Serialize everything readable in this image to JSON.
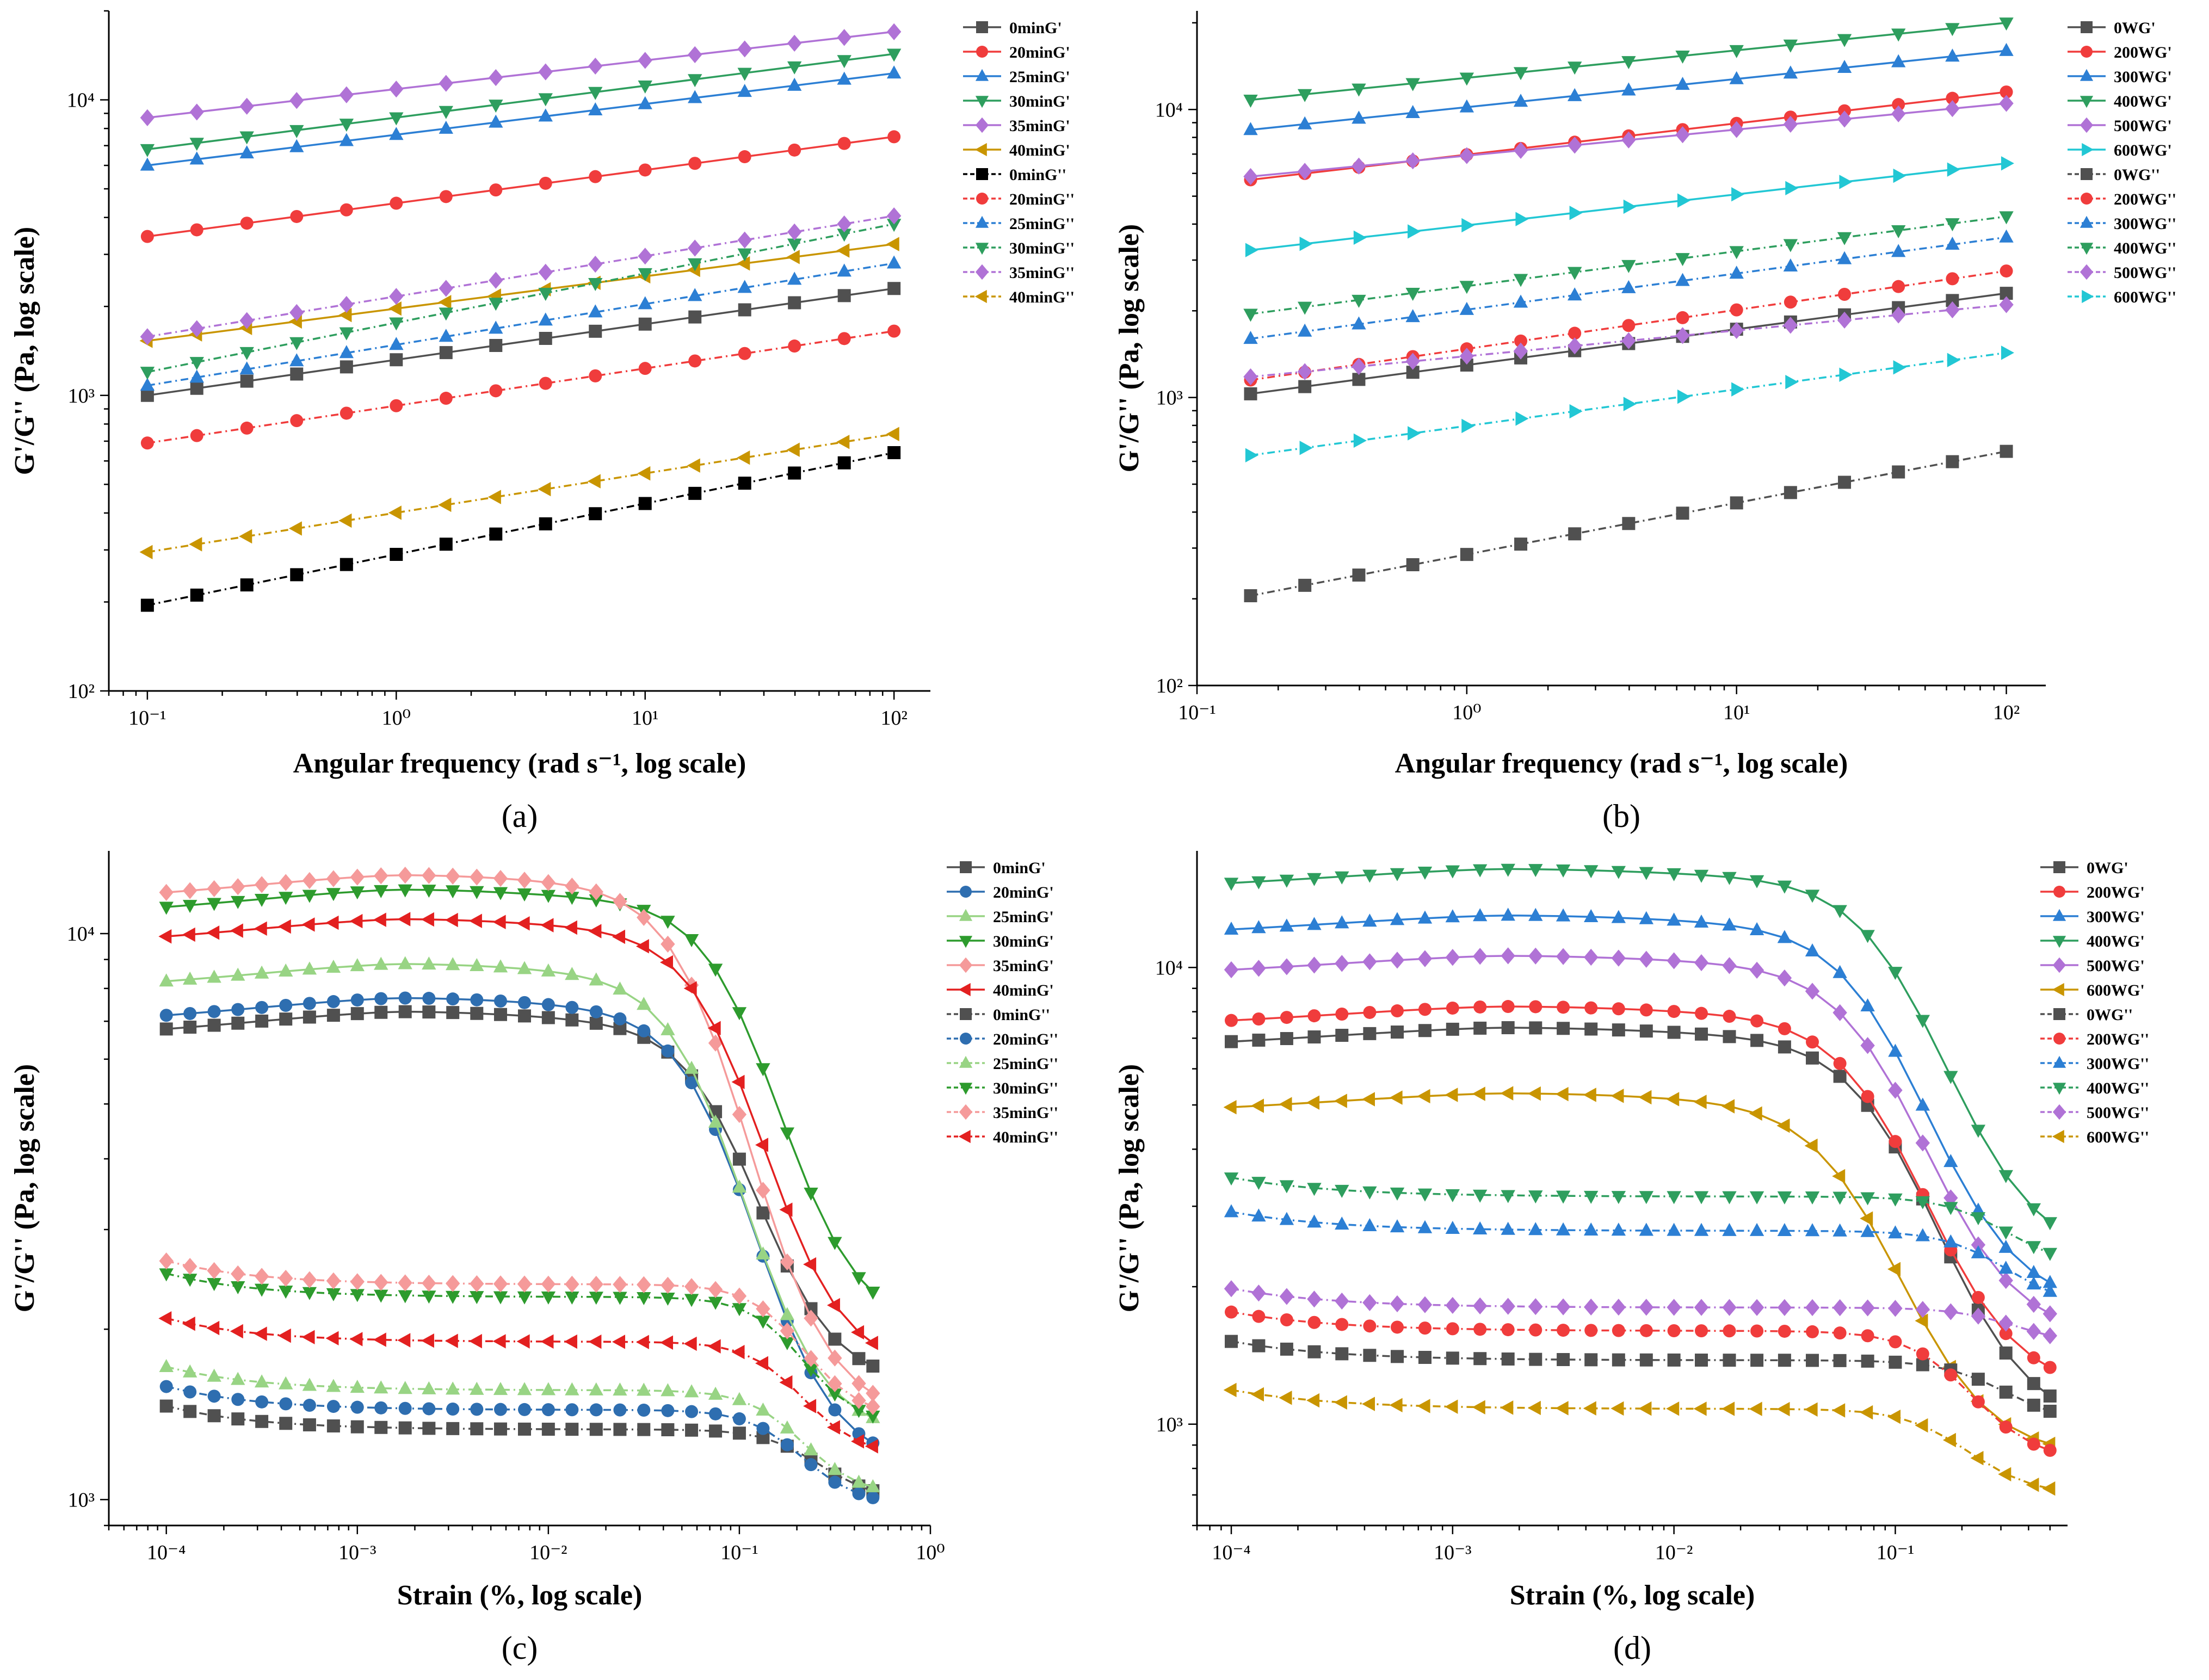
{
  "figure": {
    "colors": {
      "black": "#505050",
      "black_fill": "#000000",
      "red": "#f03c3c",
      "blue": "#2c7fd4",
      "green": "#2e9e5e",
      "purple": "#b072d6",
      "orange": "#c99500",
      "cyan": "#22c7d4",
      "steel": "#2e6eb0",
      "light_green": "#98d484",
      "dark_green": "#2d9b2d",
      "pink": "#f59a9a",
      "bright_red": "#e32020"
    }
  },
  "chart_data": [
    {
      "id": "a",
      "panel_label": "(a)",
      "type": "line",
      "xscale": "log",
      "yscale": "log",
      "xlabel": "Angular frequency (rad s⁻¹, log scale)",
      "ylabel": "G'/G'' (Pa, log scale)",
      "xlim": [
        0.07,
        140
      ],
      "ylim": [
        100,
        20000
      ],
      "xticks": [
        0.1,
        1,
        10,
        100
      ],
      "xtick_labels": [
        "10⁻¹",
        "10⁰",
        "10¹",
        "10²"
      ],
      "yticks": [
        100,
        1000,
        10000
      ],
      "ytick_labels": [
        "10²",
        "10³",
        "10⁴"
      ],
      "legend_position": "top-right",
      "x": [
        0.1,
        0.158,
        0.251,
        0.398,
        0.631,
        1,
        1.585,
        2.512,
        3.981,
        6.31,
        10,
        15.85,
        25.12,
        39.81,
        63.1,
        100
      ],
      "series": [
        {
          "name": "0minG'",
          "color": "#505050",
          "marker": "square",
          "dash": "solid",
          "y0": 1000,
          "y1": 2300
        },
        {
          "name": "20minG'",
          "color": "#f03c3c",
          "marker": "circle",
          "dash": "solid",
          "y0": 3450,
          "y1": 7500
        },
        {
          "name": "25minG'",
          "color": "#2c7fd4",
          "marker": "triangle-up",
          "dash": "solid",
          "y0": 6000,
          "y1": 12300
        },
        {
          "name": "30minG'",
          "color": "#2e9e5e",
          "marker": "triangle-down",
          "dash": "solid",
          "y0": 6800,
          "y1": 14300
        },
        {
          "name": "35minG'",
          "color": "#b072d6",
          "marker": "diamond",
          "dash": "solid",
          "y0": 8700,
          "y1": 17000
        },
        {
          "name": "40minG'",
          "color": "#c99500",
          "marker": "triangle-left",
          "dash": "solid",
          "y0": 1530,
          "y1": 3250
        },
        {
          "name": "0minG''",
          "color": "#000000",
          "marker": "square",
          "dash": "dashdot",
          "y0": 195,
          "y1": 640
        },
        {
          "name": "20minG''",
          "color": "#f03c3c",
          "marker": "circle",
          "dash": "dashdot",
          "y0": 690,
          "y1": 1650
        },
        {
          "name": "25minG''",
          "color": "#2c7fd4",
          "marker": "triangle-up",
          "dash": "dashdot",
          "y0": 1080,
          "y1": 2800
        },
        {
          "name": "30minG''",
          "color": "#2e9e5e",
          "marker": "triangle-down",
          "dash": "dashdot",
          "y0": 1200,
          "y1": 3800
        },
        {
          "name": "35minG''",
          "color": "#b072d6",
          "marker": "diamond",
          "dash": "dashdot",
          "y0": 1580,
          "y1": 4050
        },
        {
          "name": "40minG''",
          "color": "#c99500",
          "marker": "triangle-left",
          "dash": "dashdot",
          "y0": 295,
          "y1": 740
        }
      ]
    },
    {
      "id": "b",
      "panel_label": "(b)",
      "type": "line",
      "xscale": "log",
      "yscale": "log",
      "xlabel": "Angular frequency (rad s⁻¹, log scale)",
      "ylabel": "G'/G'' (Pa, log scale)",
      "xlim": [
        0.1,
        140
      ],
      "ylim": [
        100,
        22000
      ],
      "xticks": [
        0.1,
        1,
        10,
        100
      ],
      "xtick_labels": [
        "10⁻¹",
        "10⁰",
        "10¹",
        "10²"
      ],
      "yticks": [
        100,
        1000,
        10000
      ],
      "ytick_labels": [
        "10²",
        "10³",
        "10⁴"
      ],
      "legend_position": "top-right",
      "x": [
        0.158,
        0.251,
        0.398,
        0.631,
        1,
        1.585,
        2.512,
        3.981,
        6.31,
        10,
        15.85,
        25.12,
        39.81,
        63.1,
        100
      ],
      "series": [
        {
          "name": "0WG'",
          "color": "#505050",
          "marker": "square",
          "dash": "solid",
          "y0": 1030,
          "y1": 2300
        },
        {
          "name": "200WG'",
          "color": "#f03c3c",
          "marker": "circle",
          "dash": "solid",
          "y0": 5700,
          "y1": 11500
        },
        {
          "name": "300WG'",
          "color": "#2c7fd4",
          "marker": "triangle-up",
          "dash": "solid",
          "y0": 8500,
          "y1": 16000
        },
        {
          "name": "400WG'",
          "color": "#2e9e5e",
          "marker": "triangle-down",
          "dash": "solid",
          "y0": 10800,
          "y1": 20000
        },
        {
          "name": "500WG'",
          "color": "#b072d6",
          "marker": "diamond",
          "dash": "solid",
          "y0": 5850,
          "y1": 10500
        },
        {
          "name": "600WG'",
          "color": "#22c7d4",
          "marker": "triangle-right",
          "dash": "solid",
          "y0": 3250,
          "y1": 6500
        },
        {
          "name": "0WG''",
          "color": "#505050",
          "marker": "square",
          "dash": "dashdot",
          "y0": 205,
          "y1": 650
        },
        {
          "name": "200WG''",
          "color": "#f03c3c",
          "marker": "circle",
          "dash": "dashdot",
          "y0": 1150,
          "y1": 2750
        },
        {
          "name": "300WG''",
          "color": "#2c7fd4",
          "marker": "triangle-up",
          "dash": "dashdot",
          "y0": 1600,
          "y1": 3600
        },
        {
          "name": "400WG''",
          "color": "#2e9e5e",
          "marker": "triangle-down",
          "dash": "dashdot",
          "y0": 1950,
          "y1": 4250
        },
        {
          "name": "500WG''",
          "color": "#b072d6",
          "marker": "diamond",
          "dash": "dashdot",
          "y0": 1180,
          "y1": 2100
        },
        {
          "name": "600WG''",
          "color": "#22c7d4",
          "marker": "triangle-right",
          "dash": "dashdot",
          "y0": 630,
          "y1": 1430
        }
      ]
    },
    {
      "id": "c",
      "panel_label": "(c)",
      "type": "line",
      "xscale": "log",
      "yscale": "log",
      "xlabel": "Strain (%, log scale)",
      "ylabel": "G'/G'' (Pa, log scale)",
      "xlim": [
        5e-05,
        1
      ],
      "ylim": [
        900,
        14000
      ],
      "xticks": [
        0.0001,
        0.001,
        0.01,
        0.1,
        1
      ],
      "xtick_labels": [
        "10⁻⁴",
        "10⁻³",
        "10⁻²",
        "10⁻¹",
        "10⁰"
      ],
      "yticks": [
        1000,
        10000
      ],
      "ytick_labels": [
        "10³",
        "10⁴"
      ],
      "legend_position": "top-right",
      "x": [
        0.0001,
        0.000133,
        0.000178,
        0.000237,
        0.000316,
        0.000422,
        0.000562,
        0.00075,
        0.001,
        0.00133,
        0.00178,
        0.00237,
        0.00316,
        0.00422,
        0.00562,
        0.0075,
        0.01,
        0.0133,
        0.0178,
        0.0237,
        0.0316,
        0.0422,
        0.0562,
        0.075,
        0.1,
        0.133,
        0.178,
        0.237,
        0.316,
        0.422,
        0.5
      ],
      "series": [
        {
          "name": "0minG'",
          "color": "#505050",
          "marker": "square",
          "dash": "solid",
          "plateau": 7000,
          "end": 1600,
          "kind": "storage",
          "gc": 0.09
        },
        {
          "name": "20minG'",
          "color": "#2e6eb0",
          "marker": "circle",
          "dash": "solid",
          "plateau": 7400,
          "end": 1150,
          "kind": "storage",
          "gc": 0.08
        },
        {
          "name": "25minG'",
          "color": "#98d484",
          "marker": "triangle-up",
          "dash": "solid",
          "plateau": 8500,
          "end": 1300,
          "kind": "storage",
          "gc": 0.07
        },
        {
          "name": "30minG'",
          "color": "#2d9b2d",
          "marker": "triangle-down",
          "dash": "solid",
          "plateau": 11500,
          "end": 2000,
          "kind": "storage",
          "gc": 0.11
        },
        {
          "name": "35minG'",
          "color": "#f59a9a",
          "marker": "diamond",
          "dash": "solid",
          "plateau": 12200,
          "end": 1400,
          "kind": "storage",
          "gc": 0.07
        },
        {
          "name": "40minG'",
          "color": "#e32020",
          "marker": "triangle-left",
          "dash": "solid",
          "plateau": 10200,
          "end": 1700,
          "kind": "storage",
          "gc": 0.09
        },
        {
          "name": "0minG''",
          "color": "#505050",
          "marker": "square",
          "dash": "dashdot",
          "plateau": 1330,
          "end": 1000,
          "kind": "loss",
          "gc": 0.25
        },
        {
          "name": "20minG''",
          "color": "#2e6eb0",
          "marker": "circle",
          "dash": "dashdot",
          "plateau": 1440,
          "end": 980,
          "kind": "loss",
          "gc": 0.2
        },
        {
          "name": "25minG''",
          "color": "#98d484",
          "marker": "triangle-up",
          "dash": "dashdot",
          "plateau": 1560,
          "end": 1020,
          "kind": "loss",
          "gc": 0.2
        },
        {
          "name": "30minG''",
          "color": "#2d9b2d",
          "marker": "triangle-down",
          "dash": "dashdot",
          "plateau": 2280,
          "end": 1350,
          "kind": "loss",
          "gc": 0.2
        },
        {
          "name": "35minG''",
          "color": "#f59a9a",
          "marker": "diamond",
          "dash": "dashdot",
          "plateau": 2400,
          "end": 1400,
          "kind": "loss",
          "gc": 0.2
        },
        {
          "name": "40minG''",
          "color": "#e32020",
          "marker": "triangle-left",
          "dash": "dashdot",
          "plateau": 1900,
          "end": 1200,
          "kind": "loss",
          "gc": 0.2
        }
      ]
    },
    {
      "id": "d",
      "panel_label": "(d)",
      "type": "line",
      "xscale": "log",
      "yscale": "log",
      "xlabel": "Strain (%, log scale)",
      "ylabel": "G'/G'' (Pa, log scale)",
      "xlim": [
        7e-05,
        0.6
      ],
      "ylim": [
        600,
        18000
      ],
      "xticks": [
        0.0001,
        0.001,
        0.01,
        0.1
      ],
      "xtick_labels": [
        "10⁻⁴",
        "10⁻³",
        "10⁻²",
        "10⁻¹"
      ],
      "yticks": [
        1000,
        10000
      ],
      "ytick_labels": [
        "10³",
        "10⁴"
      ],
      "legend_position": "top-right",
      "x": [
        0.0001,
        0.000133,
        0.000178,
        0.000237,
        0.000316,
        0.000422,
        0.000562,
        0.00075,
        0.001,
        0.00133,
        0.00178,
        0.00237,
        0.00316,
        0.00422,
        0.00562,
        0.0075,
        0.01,
        0.0133,
        0.0178,
        0.0237,
        0.0316,
        0.0422,
        0.0562,
        0.075,
        0.1,
        0.133,
        0.178,
        0.237,
        0.316,
        0.422,
        0.5
      ],
      "series": [
        {
          "name": "0WG'",
          "color": "#505050",
          "marker": "square",
          "dash": "solid",
          "plateau": 7100,
          "end": 980,
          "kind": "storage",
          "gc": 0.1
        },
        {
          "name": "200WG'",
          "color": "#f03c3c",
          "marker": "circle",
          "dash": "solid",
          "plateau": 7900,
          "end": 1180,
          "kind": "storage",
          "gc": 0.09
        },
        {
          "name": "300WG'",
          "color": "#2c7fd4",
          "marker": "triangle-up",
          "dash": "solid",
          "plateau": 12500,
          "end": 1800,
          "kind": "storage",
          "gc": 0.09
        },
        {
          "name": "400WG'",
          "color": "#2e9e5e",
          "marker": "triangle-down",
          "dash": "solid",
          "plateau": 15800,
          "end": 2300,
          "kind": "storage",
          "gc": 0.11
        },
        {
          "name": "500WG'",
          "color": "#b072d6",
          "marker": "diamond",
          "dash": "solid",
          "plateau": 10200,
          "end": 1550,
          "kind": "storage",
          "gc": 0.09
        },
        {
          "name": "600WG'",
          "color": "#c99500",
          "marker": "triangle-left",
          "dash": "solid",
          "plateau": 5100,
          "end": 850,
          "kind": "storage",
          "gc": 0.07
        },
        {
          "name": "0WG''",
          "color": "#505050",
          "marker": "square",
          "dash": "dashdot",
          "plateau": 1380,
          "end": 1000,
          "kind": "loss",
          "gc": 0.3
        },
        {
          "name": "200WG''",
          "color": "#f03c3c",
          "marker": "circle",
          "dash": "dashdot",
          "plateau": 1600,
          "end": 830,
          "kind": "loss",
          "gc": 0.2
        },
        {
          "name": "300WG''",
          "color": "#2c7fd4",
          "marker": "triangle-up",
          "dash": "dashdot",
          "plateau": 2650,
          "end": 1800,
          "kind": "loss",
          "gc": 0.3
        },
        {
          "name": "400WG''",
          "color": "#2e9e5e",
          "marker": "triangle-down",
          "dash": "dashdot",
          "plateau": 3150,
          "end": 2200,
          "kind": "loss",
          "gc": 0.3
        },
        {
          "name": "500WG''",
          "color": "#b072d6",
          "marker": "diamond",
          "dash": "dashdot",
          "plateau": 1800,
          "end": 1480,
          "kind": "loss",
          "gc": 0.35
        },
        {
          "name": "600WG''",
          "color": "#c99500",
          "marker": "triangle-left",
          "dash": "dashdot",
          "plateau": 1080,
          "end": 700,
          "kind": "loss",
          "gc": 0.2
        }
      ]
    }
  ]
}
